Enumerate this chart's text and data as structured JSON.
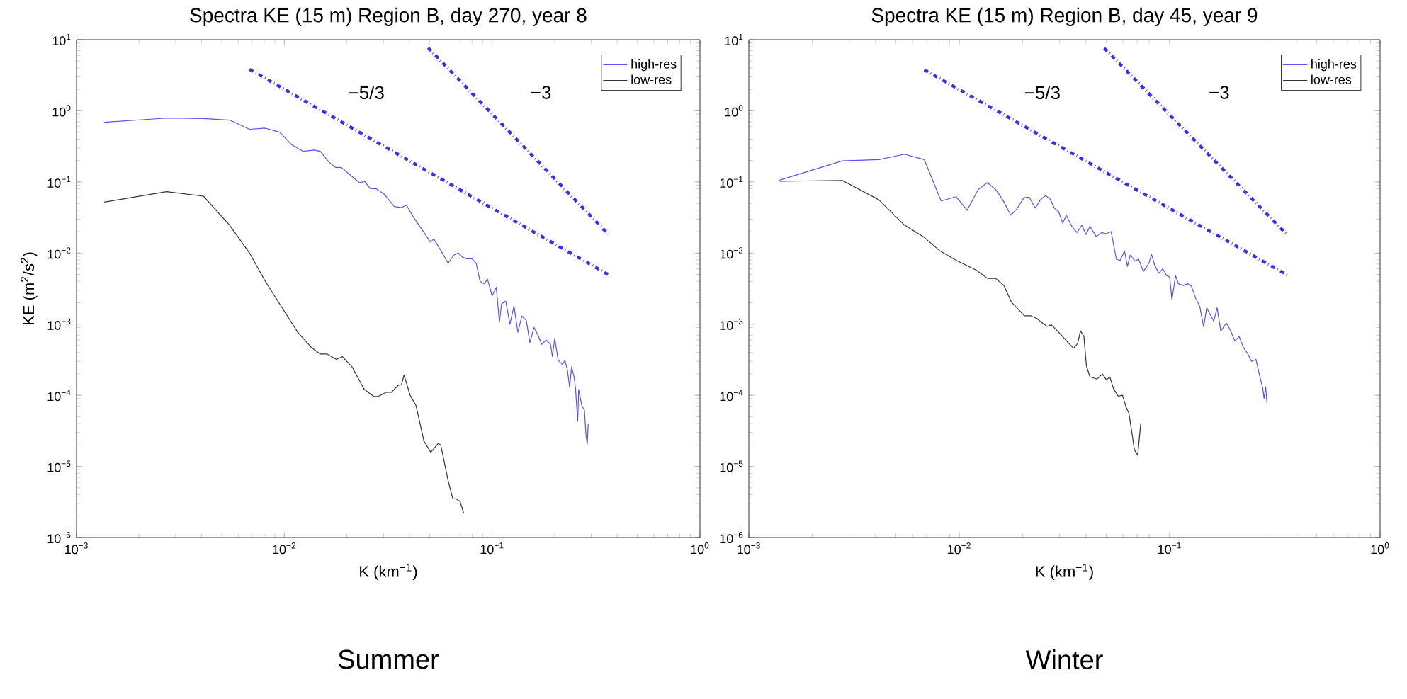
{
  "chart_data": [
    {
      "type": "line",
      "title": "Spectra KE (15 m) Region B, day 270, year 8",
      "xlabel": "K (km$^{−1}$)",
      "ylabel": "KE (m$^{2}$/s$^{2}$)",
      "log": "xy",
      "legend": "top right",
      "marker": "none",
      "grid": false,
      "xlim": [
        0.001,
        1
      ],
      "ylim": [
        1e-06,
        10
      ],
      "xticks": [
        {
          "value": 0.001,
          "label": "10$^{−3}$"
        },
        {
          "value": 0.01,
          "label": "10$^{−2}$"
        },
        {
          "value": 0.1,
          "label": "10$^{−1}$"
        },
        {
          "value": 1,
          "label": "10$^{0}$"
        }
      ],
      "yticks": [
        {
          "value": 1e-06,
          "label": "10$^{−6}$"
        },
        {
          "value": 1e-05,
          "label": "10$^{−5}$"
        },
        {
          "value": 0.0001,
          "label": "10$^{−4}$"
        },
        {
          "value": 0.001,
          "label": "10$^{−3}$"
        },
        {
          "value": 0.01,
          "label": "10$^{−2}$"
        },
        {
          "value": 0.1,
          "label": "10$^{−1}$"
        },
        {
          "value": 1,
          "label": "10$^{0}$"
        },
        {
          "value": 10,
          "label": "10$^{1}$"
        }
      ],
      "series": [
        {
          "name": "high-res",
          "color": "#5a4ff0",
          "x": [
            0.00136,
            0.00271,
            0.0041,
            0.00546,
            0.0068,
            0.0081,
            0.0095,
            0.0109,
            0.0123,
            0.0139,
            0.0149,
            0.0164,
            0.0176,
            0.0188,
            0.0212,
            0.023,
            0.0243,
            0.0259,
            0.0277,
            0.0303,
            0.0338,
            0.0366,
            0.0387,
            0.0421,
            0.0471,
            0.0504,
            0.0524,
            0.0546,
            0.0583,
            0.0614,
            0.0656,
            0.0687,
            0.0719,
            0.0753,
            0.08,
            0.0838,
            0.0875,
            0.0916,
            0.095,
            0.1,
            0.1047,
            0.1084,
            0.111,
            0.1163,
            0.1218,
            0.1274,
            0.133,
            0.139,
            0.146,
            0.152,
            0.159,
            0.167,
            0.173,
            0.182,
            0.191,
            0.195,
            0.2,
            0.208,
            0.218,
            0.224,
            0.23,
            0.236,
            0.241,
            0.248,
            0.252,
            0.258,
            0.261,
            0.27,
            0.278,
            0.283,
            0.287,
            0.29
          ],
          "values": [
            0.69,
            0.79,
            0.78,
            0.74,
            0.55,
            0.57,
            0.5,
            0.33,
            0.27,
            0.28,
            0.27,
            0.19,
            0.16,
            0.16,
            0.119,
            0.0975,
            0.102,
            0.081,
            0.08,
            0.067,
            0.045,
            0.0437,
            0.047,
            0.031,
            0.0193,
            0.0143,
            0.0158,
            0.013,
            0.0094,
            0.0072,
            0.0094,
            0.01,
            0.0088,
            0.0083,
            0.0083,
            0.0072,
            0.004,
            0.0037,
            0.0043,
            0.0025,
            0.0033,
            0.00107,
            0.00193,
            0.0021,
            0.001,
            0.0018,
            0.00077,
            0.0013,
            0.00113,
            0.00055,
            0.0009,
            0.00068,
            0.00052,
            0.0006,
            0.00052,
            0.00035,
            0.00063,
            0.00031,
            0.00027,
            0.00031,
            0.00023,
            0.00013,
            0.00025,
            0.00018,
            0.000123,
            4.3e-05,
            0.00012,
            7.2e-05,
            6.2e-05,
            2.7e-05,
            2.06e-05,
            4e-05
          ]
        },
        {
          "name": "low-res",
          "color": "#333333",
          "x": [
            0.00136,
            0.00271,
            0.00408,
            0.00546,
            0.0068,
            0.0081,
            0.01,
            0.0116,
            0.0135,
            0.0149,
            0.0161,
            0.0178,
            0.019,
            0.0212,
            0.0242,
            0.027,
            0.0282,
            0.0309,
            0.0327,
            0.0354,
            0.0366,
            0.0377,
            0.0403,
            0.043,
            0.047,
            0.0507,
            0.055,
            0.0566,
            0.0614,
            0.0647,
            0.067,
            0.0701,
            0.073
          ],
          "values": [
            0.052,
            0.073,
            0.063,
            0.0245,
            0.01,
            0.004,
            0.00152,
            0.00077,
            0.00047,
            0.00038,
            0.00038,
            0.00032,
            0.00035,
            0.00025,
            0.000122,
            9.6e-05,
            9.6e-05,
            0.00011,
            0.00011,
            0.000139,
            0.00014,
            0.000193,
            0.0001,
            7.2e-05,
            2.26e-05,
            1.58e-05,
            2.1e-05,
            2e-05,
            6.3e-06,
            3.5e-06,
            3.5e-06,
            3.2e-06,
            2.2e-06
          ]
        },
        {
          "type": "line",
          "color": "#3a2ef0",
          "line_style": "dashdot",
          "x": [
            0.0068,
            0.361
          ],
          "values": [
            3.83,
            0.005
          ]
        },
        {
          "type": "line",
          "color": "#3a2ef0",
          "line_style": "dashdot",
          "x": [
            0.0492,
            0.361
          ],
          "values": [
            7.7,
            0.0186
          ]
        }
      ],
      "annotations": [
        "−5/3",
        "−3",
        "Summer"
      ]
    },
    {
      "type": "line",
      "title": "Spectra KE (15 m) Region B, day 45, year 9",
      "xlabel": "K (km$^{−1}$)",
      "log": "xy",
      "legend": "top right",
      "marker": "none",
      "grid": false,
      "xlim": [
        0.001,
        1
      ],
      "ylim": [
        1e-06,
        10
      ],
      "xticks": [
        {
          "value": 0.001,
          "label": "10$^{−3}$"
        },
        {
          "value": 0.01,
          "label": "10$^{−2}$"
        },
        {
          "value": 0.1,
          "label": "10$^{−1}$"
        },
        {
          "value": 1,
          "label": "10$^{0}$"
        }
      ],
      "yticks": [
        {
          "value": 1e-06,
          "label": "10$^{−6}$"
        },
        {
          "value": 1e-05,
          "label": "10$^{−5}$"
        },
        {
          "value": 0.0001,
          "label": "10$^{−4}$"
        },
        {
          "value": 0.001,
          "label": "10$^{−3}$"
        },
        {
          "value": 0.01,
          "label": "10$^{−2}$"
        },
        {
          "value": 0.1,
          "label": "10$^{−1}$"
        },
        {
          "value": 1,
          "label": "10$^{0}$"
        },
        {
          "value": 10,
          "label": "10$^{1}$"
        }
      ],
      "series": [
        {
          "name": "high-res",
          "color": "#5a4ff0",
          "x": [
            0.0014,
            0.00278,
            0.00415,
            0.00549,
            0.00682,
            0.0082,
            0.00965,
            0.0109,
            0.0123,
            0.0136,
            0.0149,
            0.0161,
            0.0176,
            0.0188,
            0.0203,
            0.0215,
            0.023,
            0.0243,
            0.0257,
            0.027,
            0.0283,
            0.0297,
            0.031,
            0.0323,
            0.0343,
            0.0363,
            0.0383,
            0.04,
            0.0418,
            0.0448,
            0.0474,
            0.05,
            0.0527,
            0.0558,
            0.0582,
            0.061,
            0.063,
            0.065,
            0.0684,
            0.0712,
            0.075,
            0.0797,
            0.082,
            0.0848,
            0.0888,
            0.0927,
            0.0968,
            0.1,
            0.1025,
            0.1067,
            0.11,
            0.116,
            0.122,
            0.127,
            0.133,
            0.139,
            0.145,
            0.15,
            0.155,
            0.162,
            0.168,
            0.175,
            0.186,
            0.195,
            0.204,
            0.214,
            0.224,
            0.234,
            0.245,
            0.257,
            0.268,
            0.277,
            0.281,
            0.286,
            0.29
          ],
          "values": [
            0.106,
            0.198,
            0.206,
            0.245,
            0.206,
            0.054,
            0.062,
            0.04,
            0.078,
            0.098,
            0.078,
            0.056,
            0.034,
            0.042,
            0.06,
            0.061,
            0.043,
            0.056,
            0.064,
            0.058,
            0.043,
            0.038,
            0.0264,
            0.034,
            0.0237,
            0.0194,
            0.0247,
            0.0182,
            0.0237,
            0.017,
            0.0194,
            0.0187,
            0.02,
            0.0082,
            0.0079,
            0.0107,
            0.0065,
            0.0094,
            0.0077,
            0.0082,
            0.0055,
            0.0072,
            0.0096,
            0.0068,
            0.0052,
            0.006,
            0.0048,
            0.0046,
            0.0022,
            0.0048,
            0.0037,
            0.0035,
            0.0037,
            0.0034,
            0.0023,
            0.00178,
            0.00092,
            0.0017,
            0.0014,
            0.0011,
            0.0017,
            0.0008,
            0.00104,
            0.0008,
            0.00058,
            0.00067,
            0.00047,
            0.00039,
            0.0003,
            0.00032,
            0.000187,
            0.000125,
            9e-05,
            0.00013,
            7.9e-05
          ]
        },
        {
          "name": "low-res",
          "color": "#333333",
          "x": [
            0.0014,
            0.00278,
            0.00415,
            0.00549,
            0.00675,
            0.0081,
            0.00965,
            0.0121,
            0.0136,
            0.0149,
            0.0163,
            0.0177,
            0.0204,
            0.0219,
            0.0234,
            0.0247,
            0.0262,
            0.0274,
            0.0306,
            0.0331,
            0.0349,
            0.0365,
            0.0377,
            0.0391,
            0.0402,
            0.0418,
            0.045,
            0.048,
            0.05,
            0.052,
            0.054,
            0.057,
            0.0597,
            0.062,
            0.064,
            0.066,
            0.068,
            0.0705,
            0.0729
          ],
          "values": [
            0.102,
            0.105,
            0.056,
            0.0247,
            0.017,
            0.0107,
            0.0079,
            0.0057,
            0.0044,
            0.0044,
            0.0035,
            0.00204,
            0.00131,
            0.00131,
            0.0012,
            0.00105,
            0.00093,
            0.00098,
            0.0007,
            0.00054,
            0.00046,
            0.00053,
            0.0008,
            0.00068,
            0.00026,
            0.000182,
            0.000169,
            0.000199,
            0.000165,
            0.00018,
            0.000125,
            9.7e-05,
            0.0001,
            6.9e-05,
            5.6e-05,
            3.1e-05,
            1.71e-05,
            1.44e-05,
            4.05e-05
          ]
        },
        {
          "type": "line",
          "color": "#3a2ef0",
          "line_style": "dashdot",
          "x": [
            0.00682,
            0.361
          ],
          "values": [
            3.77,
            0.00495
          ]
        },
        {
          "type": "line",
          "color": "#3a2ef0",
          "line_style": "dashdot",
          "x": [
            0.0489,
            0.361
          ],
          "values": [
            7.6,
            0.0182
          ]
        }
      ],
      "annotations": [
        "−5/3",
        "−3",
        "Winter"
      ]
    }
  ]
}
